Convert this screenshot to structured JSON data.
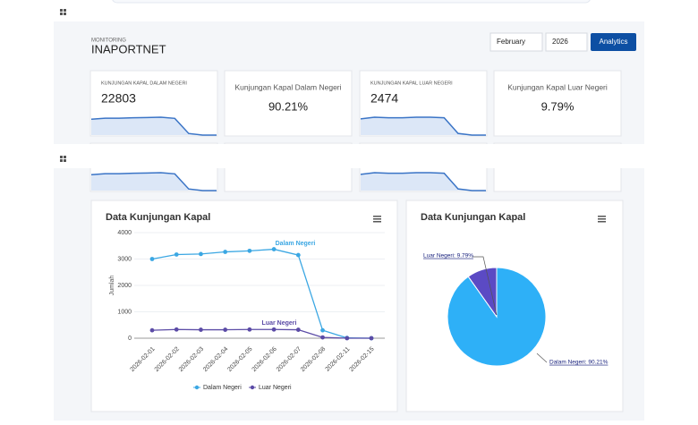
{
  "header": {
    "eyebrow": "MONITORING",
    "title": "INAPORTNET"
  },
  "controls": {
    "month": "February",
    "year": "2026",
    "button": "Analytics"
  },
  "cards": [
    {
      "label": "KUNJUNGAN KAPAL DALAM NEGERI",
      "value": 22803
    },
    {
      "label": "Kunjungan Kapal Dalam Negeri",
      "value": "90.21%"
    },
    {
      "label": "KUNJUNGAN KAPAL LUAR NEGERI",
      "value": 2474
    },
    {
      "label": "Kunjungan Kapal Luar Negeri",
      "value": "9.79%"
    }
  ],
  "chart_data": [
    {
      "type": "line",
      "title": "Data Kunjungan Kapal",
      "y_label": "Jumlah",
      "categories": [
        "2026-02-01",
        "2026-02-02",
        "2026-02-03",
        "2026-02-04",
        "2026-02-05",
        "2026-02-06",
        "2026-02-07",
        "2026-02-08",
        "2026-02-11",
        "2026-02-15"
      ],
      "series": [
        {
          "name": "Dalam Negeri",
          "color": "#3ba7e3",
          "values": [
            3000,
            3170,
            3190,
            3270,
            3310,
            3370,
            3150,
            300,
            10,
            0
          ]
        },
        {
          "name": "Luar Negeri",
          "color": "#5b4ba6",
          "values": [
            300,
            330,
            320,
            320,
            330,
            330,
            320,
            30,
            0,
            0
          ]
        }
      ],
      "ylim": [
        0,
        4000
      ],
      "yticks": [
        0,
        1000,
        2000,
        3000,
        4000
      ],
      "grid": true
    },
    {
      "type": "pie",
      "title": "Data Kunjungan Kapal",
      "categories": [
        "Dalam Negeri",
        "Luar Negeri"
      ],
      "values": [
        90.21,
        9.79
      ],
      "value_labels": [
        "Dalam Negeri: 90.21%",
        "Luar Negeri: 9.79%"
      ],
      "colors": [
        "#2eb0f7",
        "#5b4ac4"
      ]
    }
  ]
}
